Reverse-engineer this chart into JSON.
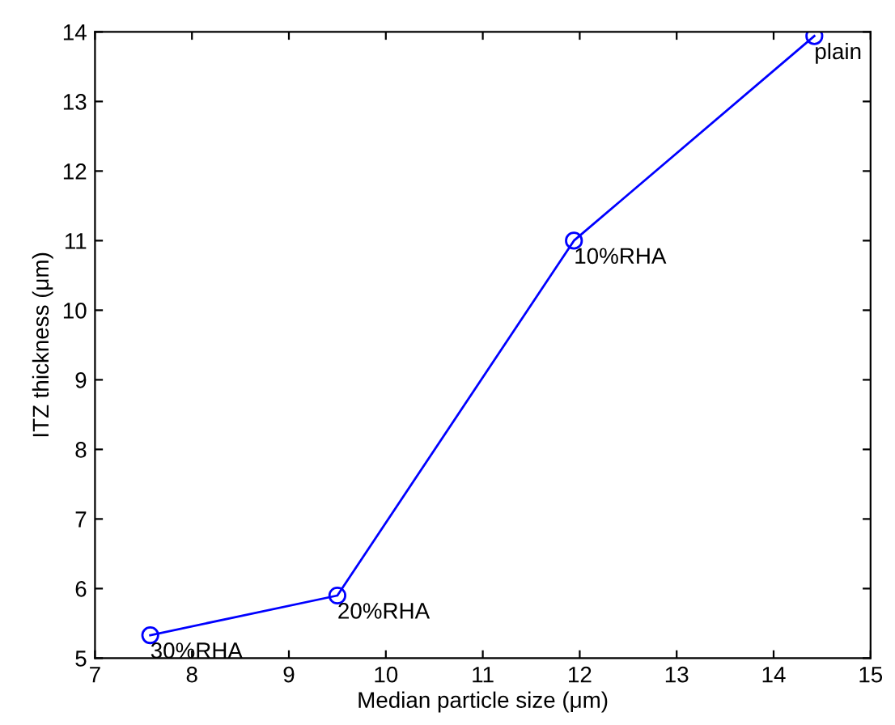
{
  "chart_data": {
    "type": "line",
    "xlabel": "Median particle size (μm)",
    "ylabel": "ITZ thickness (μm)",
    "x": [
      7.57,
      9.5,
      11.94,
      14.42
    ],
    "series": [
      {
        "color": "#0000ff",
        "values": [
          5.33,
          5.9,
          11.0,
          13.94
        ]
      }
    ],
    "marker": "circle",
    "xlim": [
      7,
      15
    ],
    "xticks": [
      7,
      8,
      9,
      10,
      11,
      12,
      13,
      14,
      15
    ],
    "ylim": [
      5,
      14
    ],
    "yticks": [
      5,
      6,
      7,
      8,
      9,
      10,
      11,
      12,
      13,
      14
    ],
    "grid": false,
    "legend": false,
    "annotations": [
      {
        "text": "30%RHA",
        "x": 7.57,
        "y": 5.33
      },
      {
        "text": "20%RHA",
        "x": 9.5,
        "y": 5.9
      },
      {
        "text": "10%RHA",
        "x": 11.94,
        "y": 11.0
      },
      {
        "text": "plain",
        "x": 14.42,
        "y": 13.94
      }
    ]
  }
}
